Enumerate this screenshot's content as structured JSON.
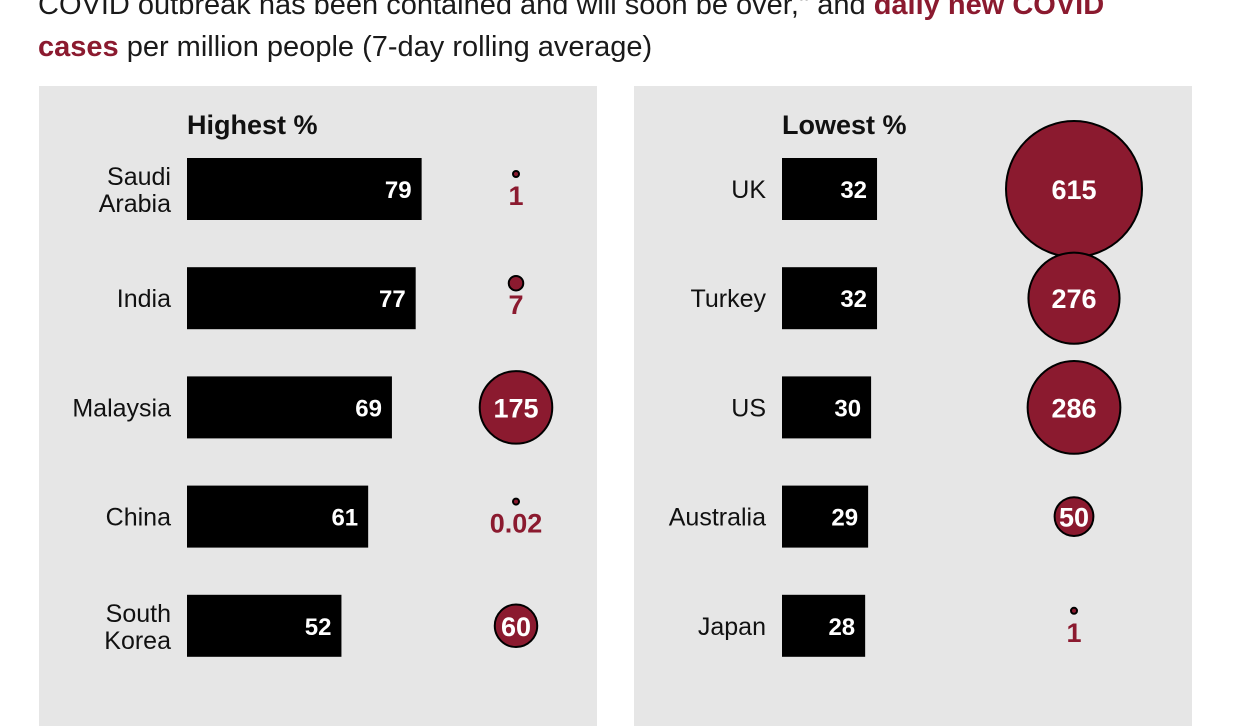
{
  "subtitle": {
    "line1_plain": "COVID outbreak has been contained and will soon be over,\" and ",
    "line1_highlight": "daily new COVID",
    "line2_highlight": "cases",
    "line2_plain": " per million people (7-day rolling average)"
  },
  "colors": {
    "accent": "#8b1a2f",
    "bar": "#000000",
    "panel": "#e6e6e6"
  },
  "chart_data": [
    {
      "type": "bar",
      "title": "Highest %",
      "categories": [
        [
          "Saudi",
          "Arabia"
        ],
        [
          "India"
        ],
        [
          "Malaysia"
        ],
        [
          "China"
        ],
        [
          "South",
          "Korea"
        ]
      ],
      "series": [
        {
          "values": [
            79,
            77,
            69,
            61,
            52
          ]
        },
        {
          "values": [
            1,
            7,
            175,
            0.02,
            60
          ]
        }
      ]
    },
    {
      "type": "bar",
      "title": "Lowest %",
      "categories": [
        [
          "UK"
        ],
        [
          "Turkey"
        ],
        [
          "US"
        ],
        [
          "Australia"
        ],
        [
          "Japan"
        ]
      ],
      "series": [
        {
          "values": [
            32,
            32,
            30,
            29,
            28
          ]
        },
        {
          "values": [
            615,
            276,
            286,
            50,
            1
          ]
        }
      ]
    }
  ]
}
